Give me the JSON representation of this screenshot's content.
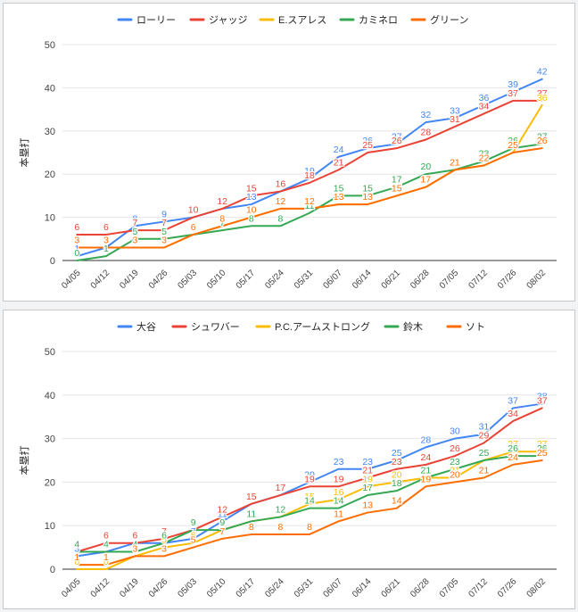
{
  "chart_data": [
    {
      "type": "line",
      "title": "",
      "xlabel": "",
      "ylabel": "本塁打",
      "ylim": [
        0,
        50
      ],
      "yticks": [
        0,
        10,
        20,
        30,
        40,
        50
      ],
      "grid": true,
      "legend_position": "top",
      "show_data_labels": true,
      "categories": [
        "04/05",
        "04/12",
        "04/19",
        "04/26",
        "05/03",
        "05/10",
        "05/17",
        "05/24",
        "05/31",
        "06/07",
        "06/14",
        "06/21",
        "06/28",
        "07/05",
        "07/12",
        "07/26",
        "08/02"
      ],
      "series": [
        {
          "name": "ローリー",
          "color": "#4285f4",
          "values": [
            1,
            3,
            8,
            9,
            10,
            12,
            13,
            16,
            19,
            24,
            26,
            27,
            32,
            33,
            36,
            39,
            42
          ]
        },
        {
          "name": "ジャッジ",
          "color": "#ea4335",
          "values": [
            6,
            6,
            7,
            7,
            10,
            12,
            15,
            16,
            18,
            21,
            25,
            26,
            28,
            31,
            34,
            37,
            37
          ]
        },
        {
          "name": "E.スアレス",
          "color": "#fbbc04",
          "values": [
            3,
            3,
            3,
            3,
            6,
            8,
            10,
            12,
            12,
            13,
            13,
            15,
            17,
            21,
            22,
            25,
            36
          ]
        },
        {
          "name": "カミネロ",
          "color": "#34a853",
          "values": [
            0,
            1,
            5,
            5,
            6,
            7,
            8,
            8,
            11,
            15,
            15,
            17,
            20,
            21,
            23,
            26,
            27
          ]
        },
        {
          "name": "グリーン",
          "color": "#ff6d01",
          "values": [
            3,
            3,
            3,
            3,
            6,
            8,
            10,
            12,
            12,
            13,
            13,
            15,
            17,
            21,
            22,
            25,
            26
          ]
        }
      ]
    },
    {
      "type": "line",
      "title": "",
      "xlabel": "",
      "ylabel": "本塁打",
      "ylim": [
        0,
        50
      ],
      "yticks": [
        0,
        10,
        20,
        30,
        40,
        50
      ],
      "grid": true,
      "legend_position": "top",
      "show_data_labels": true,
      "categories": [
        "04/05",
        "04/12",
        "04/19",
        "04/26",
        "05/03",
        "05/10",
        "05/17",
        "05/24",
        "05/31",
        "06/07",
        "06/14",
        "06/21",
        "06/28",
        "07/05",
        "07/12",
        "07/26",
        "08/02"
      ],
      "series": [
        {
          "name": "大谷",
          "color": "#4285f4",
          "values": [
            3,
            4,
            6,
            6,
            7,
            11,
            15,
            17,
            20,
            23,
            23,
            25,
            28,
            30,
            31,
            37,
            38
          ]
        },
        {
          "name": "シュワバー",
          "color": "#ea4335",
          "values": [
            4,
            6,
            6,
            7,
            9,
            12,
            15,
            17,
            19,
            19,
            21,
            23,
            24,
            26,
            29,
            34,
            37
          ]
        },
        {
          "name": "P.C.アームストロング",
          "color": "#fbbc04",
          "values": [
            0,
            0,
            3,
            5,
            6,
            9,
            11,
            12,
            15,
            16,
            19,
            20,
            21,
            21,
            25,
            27,
            27
          ]
        },
        {
          "name": "鈴木",
          "color": "#34a853",
          "values": [
            4,
            4,
            4,
            6,
            9,
            9,
            11,
            12,
            14,
            14,
            17,
            18,
            21,
            23,
            25,
            26,
            26
          ]
        },
        {
          "name": "ソト",
          "color": "#ff6d01",
          "values": [
            1,
            1,
            3,
            3,
            5,
            7,
            8,
            8,
            8,
            11,
            13,
            14,
            19,
            20,
            21,
            24,
            25
          ]
        }
      ]
    }
  ]
}
